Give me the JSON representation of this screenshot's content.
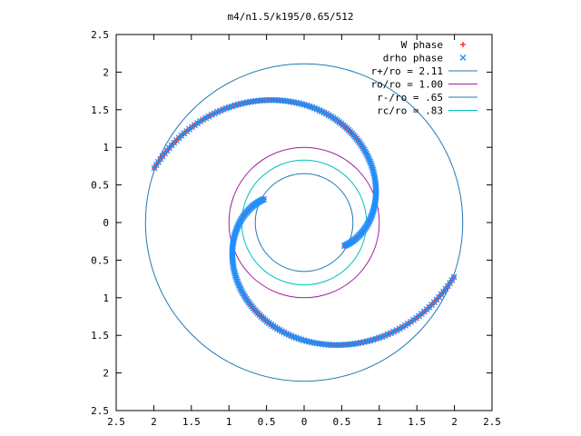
{
  "chart_data": {
    "type": "scatter",
    "title": "m4/n1.5/k195/0.65/512",
    "xlabel": "",
    "ylabel": "",
    "xlim": [
      -2.5,
      2.5
    ],
    "ylim": [
      -2.5,
      2.5
    ],
    "xticks": [
      -2.5,
      -2,
      -1.5,
      -1,
      -0.5,
      0,
      0.5,
      1,
      1.5,
      2,
      2.5
    ],
    "yticks": [
      -2.5,
      -2,
      -1.5,
      -1,
      -0.5,
      0,
      0.5,
      1,
      1.5,
      2,
      2.5
    ],
    "xtick_labels": [
      "2.5",
      "2",
      "1.5",
      "1",
      "0.5",
      "0",
      "0.5",
      "1",
      "1.5",
      "2",
      "2.5"
    ],
    "ytick_labels": [
      "2.5",
      "2",
      "1.5",
      "1",
      "0.5",
      "0",
      "0.5",
      "1",
      "1.5",
      "2",
      "2.5"
    ],
    "grid": false,
    "legend_position": "top-right",
    "series": [
      {
        "name": "W phase",
        "marker": "+",
        "color": "#e8262a",
        "arms": [
          {
            "r_start": 0.62,
            "r_end": 2.12,
            "theta_start_deg": 150,
            "winding_deg": 190
          },
          {
            "r_start": 0.62,
            "r_end": 2.12,
            "theta_start_deg": 330,
            "winding_deg": 190
          }
        ]
      },
      {
        "name": "drho phase",
        "marker": "x",
        "color": "#1e90ff",
        "arms": [
          {
            "r_start": 0.62,
            "r_end": 2.12,
            "theta_start_deg": 150,
            "winding_deg": 190
          },
          {
            "r_start": 0.62,
            "r_end": 2.12,
            "theta_start_deg": 330,
            "winding_deg": 190
          }
        ]
      }
    ],
    "circles": [
      {
        "name": "r+/ro = 2.11",
        "radius": 2.11,
        "color": "#1f78b4"
      },
      {
        "name": "ro/ro = 1.00",
        "radius": 1.0,
        "color": "#a020a0"
      },
      {
        "name": "r-/ro = .65",
        "radius": 0.65,
        "color": "#1f78b4"
      },
      {
        "name": "rc/ro = .83",
        "radius": 0.83,
        "color": "#00c0c0"
      }
    ]
  }
}
